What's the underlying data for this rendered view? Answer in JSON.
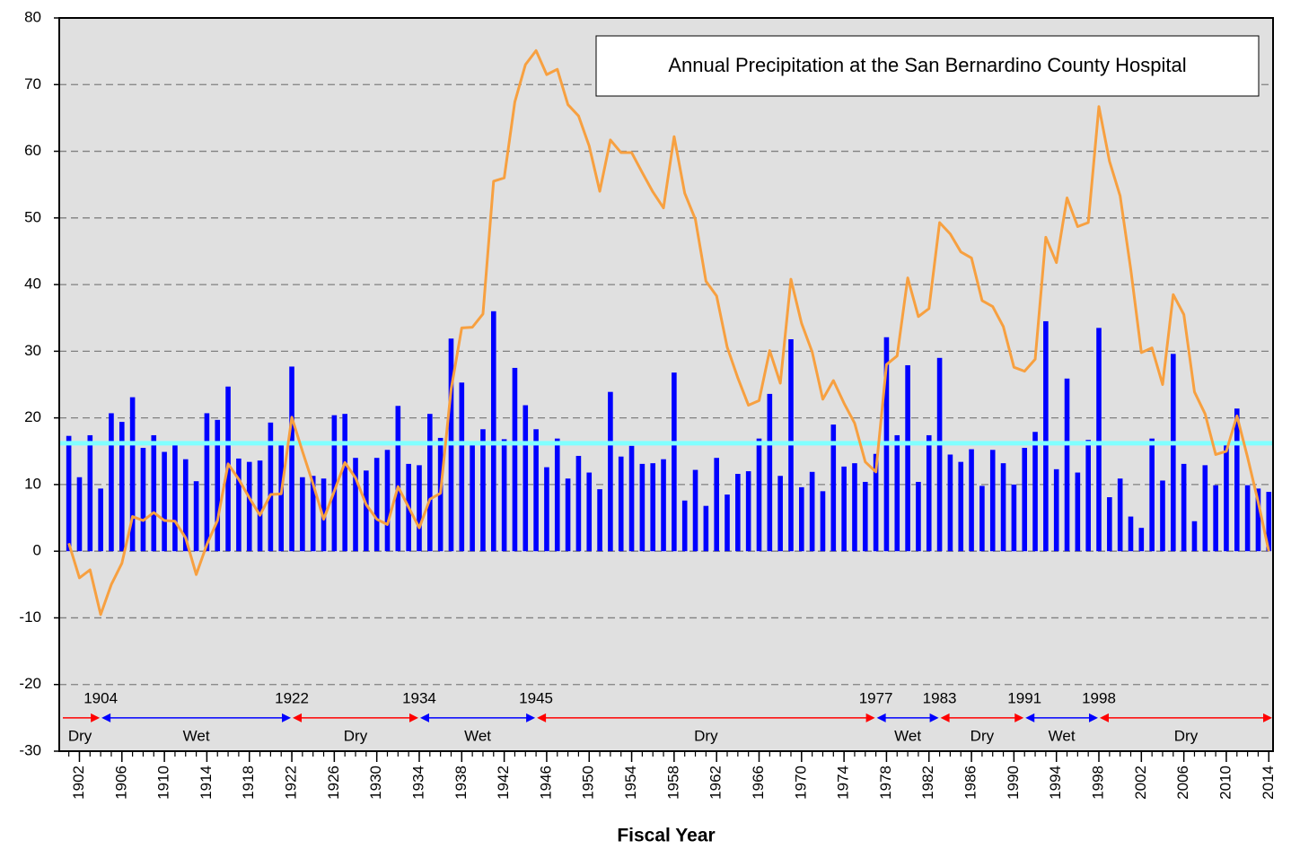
{
  "chart_data": {
    "type": "bar_line",
    "title": "Annual Precipitation at the San Bernardino County Hospital",
    "x_label": "Fiscal Year",
    "x": [
      1901,
      1902,
      1903,
      1904,
      1905,
      1906,
      1907,
      1908,
      1909,
      1910,
      1911,
      1912,
      1913,
      1914,
      1915,
      1916,
      1917,
      1918,
      1919,
      1920,
      1921,
      1922,
      1923,
      1924,
      1925,
      1926,
      1927,
      1928,
      1929,
      1930,
      1931,
      1932,
      1933,
      1934,
      1935,
      1936,
      1937,
      1938,
      1939,
      1940,
      1941,
      1942,
      1943,
      1944,
      1945,
      1946,
      1947,
      1948,
      1949,
      1950,
      1951,
      1952,
      1953,
      1954,
      1955,
      1956,
      1957,
      1958,
      1959,
      1960,
      1961,
      1962,
      1963,
      1964,
      1965,
      1966,
      1967,
      1968,
      1969,
      1970,
      1971,
      1972,
      1973,
      1974,
      1975,
      1976,
      1977,
      1978,
      1979,
      1980,
      1981,
      1982,
      1983,
      1984,
      1985,
      1986,
      1987,
      1988,
      1989,
      1990,
      1991,
      1992,
      1993,
      1994,
      1995,
      1996,
      1997,
      1998,
      1999,
      2000,
      2001,
      2002,
      2003,
      2004,
      2005,
      2006,
      2007,
      2008,
      2009,
      2010,
      2011,
      2012,
      2013,
      2014
    ],
    "series": [
      {
        "type": "bar",
        "color": "#0000ff",
        "values": [
          17.3,
          11.1,
          17.4,
          9.4,
          20.7,
          19.4,
          23.1,
          15.5,
          17.4,
          14.9,
          16.0,
          13.8,
          10.5,
          20.7,
          19.7,
          24.7,
          13.9,
          13.4,
          13.6,
          19.3,
          15.9,
          27.7,
          11.1,
          11.3,
          10.9,
          20.4,
          20.6,
          14.0,
          12.1,
          14.0,
          15.2,
          21.8,
          13.1,
          12.9,
          20.6,
          17.0,
          31.9,
          25.3,
          15.9,
          18.3,
          36.0,
          16.8,
          27.5,
          21.9,
          18.3,
          12.6,
          16.9,
          10.9,
          14.3,
          11.8,
          9.3,
          23.9,
          14.2,
          15.8,
          13.1,
          13.2,
          13.8,
          26.8,
          7.6,
          12.2,
          6.8,
          14.0,
          8.5,
          11.6,
          12.0,
          16.9,
          23.6,
          11.3,
          31.8,
          9.6,
          11.9,
          9.0,
          19.0,
          12.7,
          13.2,
          10.4,
          14.6,
          32.1,
          17.4,
          27.9,
          10.4,
          17.4,
          29.0,
          14.5,
          13.4,
          15.3,
          9.8,
          15.2,
          13.2,
          10.0,
          15.5,
          17.9,
          34.5,
          12.3,
          25.9,
          11.8,
          16.7,
          33.5,
          8.1,
          10.9,
          5.2,
          3.5,
          16.9,
          10.6,
          29.6,
          13.1,
          4.5,
          12.9,
          9.9,
          16.4,
          21.4,
          9.9,
          9.4,
          8.9
        ]
      },
      {
        "type": "line",
        "color": "#f7a040",
        "values": [
          1.2,
          -4.0,
          -2.8,
          -9.5,
          -5.0,
          -1.8,
          5.2,
          4.6,
          5.8,
          4.6,
          4.5,
          2.0,
          -3.5,
          1.0,
          4.6,
          13.1,
          10.8,
          8.0,
          5.4,
          8.5,
          8.6,
          20.1,
          15.0,
          10.1,
          4.8,
          9.0,
          13.3,
          11.0,
          7.0,
          4.8,
          4.0,
          9.7,
          6.6,
          3.5,
          7.8,
          8.7,
          24.3,
          33.5,
          33.6,
          35.6,
          55.5,
          56.0,
          67.4,
          73.0,
          75.1,
          71.5,
          72.3,
          67.0,
          65.3,
          60.8,
          54.0,
          61.7,
          59.8,
          59.8,
          56.8,
          53.9,
          51.5,
          62.2,
          53.7,
          49.8,
          40.5,
          38.3,
          30.6,
          26.0,
          21.9,
          22.6,
          30.1,
          25.2,
          40.8,
          34.2,
          29.9,
          22.8,
          25.6,
          22.2,
          19.2,
          13.4,
          11.9,
          28.0,
          29.3,
          41.0,
          35.2,
          36.4,
          49.3,
          47.6,
          44.9,
          44.0,
          37.6,
          36.7,
          33.7,
          27.6,
          27.0,
          28.8,
          47.1,
          43.3,
          53.0,
          48.7,
          49.3,
          66.7,
          58.5,
          53.3,
          42.3,
          29.8,
          30.5,
          25.0,
          38.5,
          35.5,
          23.9,
          20.6,
          14.5,
          15.0,
          20.3,
          14.1,
          7.4,
          0
        ]
      }
    ],
    "reference_line": {
      "value": 16.2,
      "color": "#80ffff"
    },
    "xlim": [
      1900.1,
      2014.4
    ],
    "xticks": [
      1902,
      1906,
      1910,
      1914,
      1918,
      1922,
      1926,
      1930,
      1934,
      1938,
      1942,
      1946,
      1950,
      1954,
      1958,
      1962,
      1966,
      1970,
      1974,
      1978,
      1982,
      1986,
      1990,
      1994,
      1998,
      2002,
      2006,
      2010,
      2014
    ],
    "ylim": [
      -30,
      80
    ],
    "yticks": [
      -30,
      -20,
      -10,
      0,
      10,
      20,
      30,
      40,
      50,
      60,
      70,
      80
    ],
    "grid": true,
    "period_level": -25,
    "boundaries": [
      1904,
      1922,
      1934,
      1945,
      1977,
      1983,
      1991,
      1998
    ],
    "periods": [
      {
        "label": "Dry",
        "color": "#ff0000"
      },
      {
        "label": "Wet",
        "color": "#0000ff"
      },
      {
        "label": "Dry",
        "color": "#ff0000"
      },
      {
        "label": "Wet",
        "color": "#0000ff"
      },
      {
        "label": "Dry",
        "color": "#ff0000"
      },
      {
        "label": "Wet",
        "color": "#0000ff"
      },
      {
        "label": "Dry",
        "color": "#ff0000"
      },
      {
        "label": "Wet",
        "color": "#0000ff"
      },
      {
        "label": "Dry",
        "color": "#ff0000"
      }
    ]
  }
}
